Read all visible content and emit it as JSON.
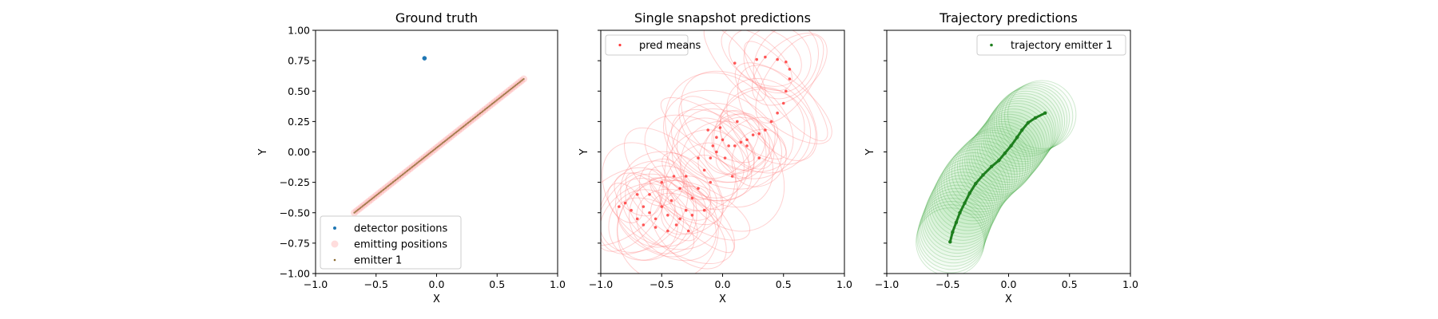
{
  "chart_data": [
    {
      "type": "scatter",
      "title": "Ground truth",
      "xlabel": "X",
      "ylabel": "Y",
      "xlim": [
        -1.0,
        1.0
      ],
      "ylim": [
        -1.0,
        1.0
      ],
      "xticks": [
        -1.0,
        -0.5,
        0.0,
        0.5,
        1.0
      ],
      "yticks": [
        -1.0,
        -0.75,
        -0.5,
        -0.25,
        0.0,
        0.25,
        0.5,
        0.75,
        1.0
      ],
      "xtick_labels": [
        "−1.0",
        "−0.5",
        "0.0",
        "0.5",
        "1.0"
      ],
      "ytick_labels": [
        "−1.00",
        "−0.75",
        "−0.50",
        "−0.25",
        "0.00",
        "0.25",
        "0.50",
        "0.75",
        "1.00"
      ],
      "show_yticklabels": true,
      "show_ylabel": true,
      "legend_position": "lower-left",
      "series": [
        {
          "name": "detector positions",
          "color": "#1f77b4",
          "marker": "dot",
          "points": [
            [
              -0.1,
              0.77
            ]
          ]
        },
        {
          "name": "emitting positions",
          "color": "#ff9f9f",
          "marker": "circle-band",
          "from": [
            -0.68,
            -0.5
          ],
          "to": [
            0.72,
            0.6
          ]
        },
        {
          "name": "emitter 1",
          "color": "#8b6a2f",
          "marker": "tiny-line",
          "from": [
            -0.68,
            -0.5
          ],
          "to": [
            0.72,
            0.6
          ]
        }
      ]
    },
    {
      "type": "scatter",
      "title": "Single snapshot predictions",
      "xlabel": "X",
      "ylabel": "Y",
      "xlim": [
        -1.0,
        1.0
      ],
      "ylim": [
        -1.0,
        1.0
      ],
      "xticks": [
        -1.0,
        -0.5,
        0.0,
        0.5,
        1.0
      ],
      "yticks": [
        -1.0,
        -0.75,
        -0.5,
        -0.25,
        0.0,
        0.25,
        0.5,
        0.75,
        1.0
      ],
      "xtick_labels": [
        "−1.0",
        "−0.5",
        "0.0",
        "0.5",
        "1.0"
      ],
      "show_yticklabels": false,
      "show_ylabel": true,
      "legend_position": "upper-left",
      "series": [
        {
          "name": "pred means",
          "color": "#ff3b3b",
          "points": [
            [
              -0.8,
              -0.42
            ],
            [
              -0.75,
              -0.48
            ],
            [
              -0.7,
              -0.55
            ],
            [
              -0.65,
              -0.6
            ],
            [
              -0.6,
              -0.5
            ],
            [
              -0.55,
              -0.62
            ],
            [
              -0.5,
              -0.45
            ],
            [
              -0.45,
              -0.65
            ],
            [
              -0.42,
              -0.4
            ],
            [
              -0.6,
              -0.35
            ],
            [
              -0.35,
              -0.55
            ],
            [
              -0.3,
              -0.48
            ],
            [
              -0.25,
              -0.38
            ],
            [
              -0.3,
              -0.2
            ],
            [
              -0.2,
              -0.3
            ],
            [
              -0.15,
              -0.15
            ],
            [
              -0.1,
              -0.05
            ],
            [
              -0.08,
              0.05
            ],
            [
              -0.05,
              0.12
            ],
            [
              -0.12,
              0.18
            ],
            [
              -0.02,
              0.2
            ],
            [
              0.0,
              0.1
            ],
            [
              0.05,
              0.05
            ],
            [
              0.1,
              0.05
            ],
            [
              0.15,
              0.08
            ],
            [
              0.2,
              0.1
            ],
            [
              0.25,
              0.14
            ],
            [
              0.3,
              0.15
            ],
            [
              0.35,
              0.18
            ],
            [
              0.4,
              0.25
            ],
            [
              0.45,
              0.32
            ],
            [
              0.5,
              0.4
            ],
            [
              0.52,
              0.5
            ],
            [
              0.55,
              0.6
            ],
            [
              0.55,
              0.68
            ],
            [
              0.52,
              0.74
            ],
            [
              0.45,
              0.76
            ],
            [
              0.35,
              0.78
            ],
            [
              0.28,
              0.76
            ],
            [
              0.1,
              0.73
            ],
            [
              -0.05,
              0.0
            ],
            [
              0.02,
              -0.05
            ],
            [
              -0.2,
              -0.05
            ],
            [
              -0.4,
              -0.2
            ],
            [
              -0.5,
              -0.25
            ],
            [
              -0.7,
              -0.35
            ],
            [
              -0.85,
              -0.45
            ],
            [
              -0.55,
              -0.55
            ],
            [
              -0.45,
              -0.52
            ],
            [
              -0.38,
              -0.6
            ],
            [
              -0.28,
              -0.65
            ],
            [
              -0.15,
              -0.48
            ],
            [
              -0.25,
              -0.52
            ],
            [
              0.08,
              -0.2
            ],
            [
              0.12,
              0.25
            ],
            [
              0.2,
              0.05
            ],
            [
              0.3,
              -0.05
            ],
            [
              -0.1,
              -0.25
            ],
            [
              -0.35,
              -0.3
            ],
            [
              -0.65,
              -0.45
            ]
          ]
        }
      ]
    },
    {
      "type": "line",
      "title": "Trajectory predictions",
      "xlabel": "X",
      "ylabel": "Y",
      "xlim": [
        -1.0,
        1.0
      ],
      "ylim": [
        -1.0,
        1.0
      ],
      "xticks": [
        -1.0,
        -0.5,
        0.0,
        0.5,
        1.0
      ],
      "yticks": [
        -1.0,
        -0.75,
        -0.5,
        -0.25,
        0.0,
        0.25,
        0.5,
        0.75,
        1.0
      ],
      "xtick_labels": [
        "−1.0",
        "−0.5",
        "0.0",
        "0.5",
        "1.0"
      ],
      "show_yticklabels": false,
      "show_ylabel": true,
      "legend_position": "upper-right",
      "series": [
        {
          "name": "trajectory emitter 1",
          "color": "#1e7f1e",
          "points": [
            [
              -0.48,
              -0.74
            ],
            [
              -0.46,
              -0.66
            ],
            [
              -0.43,
              -0.58
            ],
            [
              -0.4,
              -0.5
            ],
            [
              -0.36,
              -0.42
            ],
            [
              -0.32,
              -0.34
            ],
            [
              -0.27,
              -0.26
            ],
            [
              -0.21,
              -0.19
            ],
            [
              -0.14,
              -0.12
            ],
            [
              -0.08,
              -0.07
            ],
            [
              -0.03,
              -0.01
            ],
            [
              0.02,
              0.05
            ],
            [
              0.07,
              0.12
            ],
            [
              0.11,
              0.18
            ],
            [
              0.16,
              0.24
            ],
            [
              0.22,
              0.28
            ],
            [
              0.3,
              0.32
            ]
          ]
        }
      ]
    }
  ]
}
